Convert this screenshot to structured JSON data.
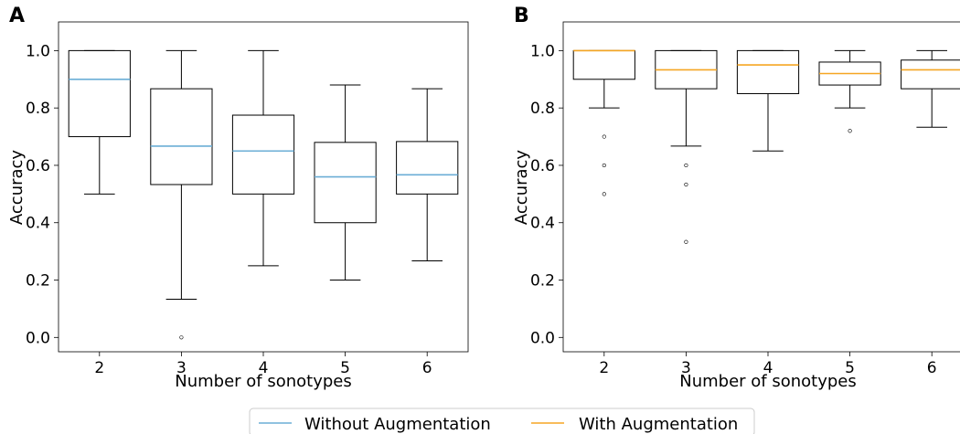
{
  "legend": {
    "items": [
      {
        "label": "Without Augmentation",
        "color": "#6baed6"
      },
      {
        "label": "With Augmentation",
        "color": "#f5a623"
      }
    ]
  },
  "chart_data": [
    {
      "type": "box",
      "panel": "A",
      "xlabel": "Number of sonotypes",
      "ylabel": "Accuracy",
      "categories": [
        "2",
        "3",
        "4",
        "5",
        "6"
      ],
      "ylim": [
        -0.05,
        1.1
      ],
      "yticks": [
        "0.0",
        "0.2",
        "0.4",
        "0.6",
        "0.8",
        "1.0"
      ],
      "median_color": "#6baed6",
      "boxes": [
        {
          "category": "2",
          "whislo": 0.5,
          "q1": 0.7,
          "median": 0.9,
          "q3": 1.0,
          "whishi": 1.0,
          "fliers": []
        },
        {
          "category": "3",
          "whislo": 0.133,
          "q1": 0.533,
          "median": 0.667,
          "q3": 0.867,
          "whishi": 1.0,
          "fliers": [
            0.0
          ]
        },
        {
          "category": "4",
          "whislo": 0.25,
          "q1": 0.5,
          "median": 0.65,
          "q3": 0.775,
          "whishi": 1.0,
          "fliers": []
        },
        {
          "category": "5",
          "whislo": 0.2,
          "q1": 0.4,
          "median": 0.56,
          "q3": 0.68,
          "whishi": 0.88,
          "fliers": []
        },
        {
          "category": "6",
          "whislo": 0.267,
          "q1": 0.5,
          "median": 0.567,
          "q3": 0.683,
          "whishi": 0.867,
          "fliers": []
        }
      ]
    },
    {
      "type": "box",
      "panel": "B",
      "xlabel": "Number of sonotypes",
      "ylabel": "Accuracy",
      "categories": [
        "2",
        "3",
        "4",
        "5",
        "6"
      ],
      "ylim": [
        -0.05,
        1.1
      ],
      "yticks": [
        "0.0",
        "0.2",
        "0.4",
        "0.6",
        "0.8",
        "1.0"
      ],
      "median_color": "#f5a623",
      "boxes": [
        {
          "category": "2",
          "whislo": 0.8,
          "q1": 0.9,
          "median": 1.0,
          "q3": 1.0,
          "whishi": 1.0,
          "fliers": [
            0.7,
            0.6,
            0.5
          ]
        },
        {
          "category": "3",
          "whislo": 0.667,
          "q1": 0.867,
          "median": 0.933,
          "q3": 1.0,
          "whishi": 1.0,
          "fliers": [
            0.6,
            0.533,
            0.333
          ]
        },
        {
          "category": "4",
          "whislo": 0.65,
          "q1": 0.85,
          "median": 0.95,
          "q3": 1.0,
          "whishi": 1.0,
          "fliers": []
        },
        {
          "category": "5",
          "whislo": 0.8,
          "q1": 0.88,
          "median": 0.92,
          "q3": 0.96,
          "whishi": 1.0,
          "fliers": [
            0.72
          ]
        },
        {
          "category": "6",
          "whislo": 0.733,
          "q1": 0.867,
          "median": 0.933,
          "q3": 0.967,
          "whishi": 1.0,
          "fliers": []
        }
      ]
    }
  ]
}
